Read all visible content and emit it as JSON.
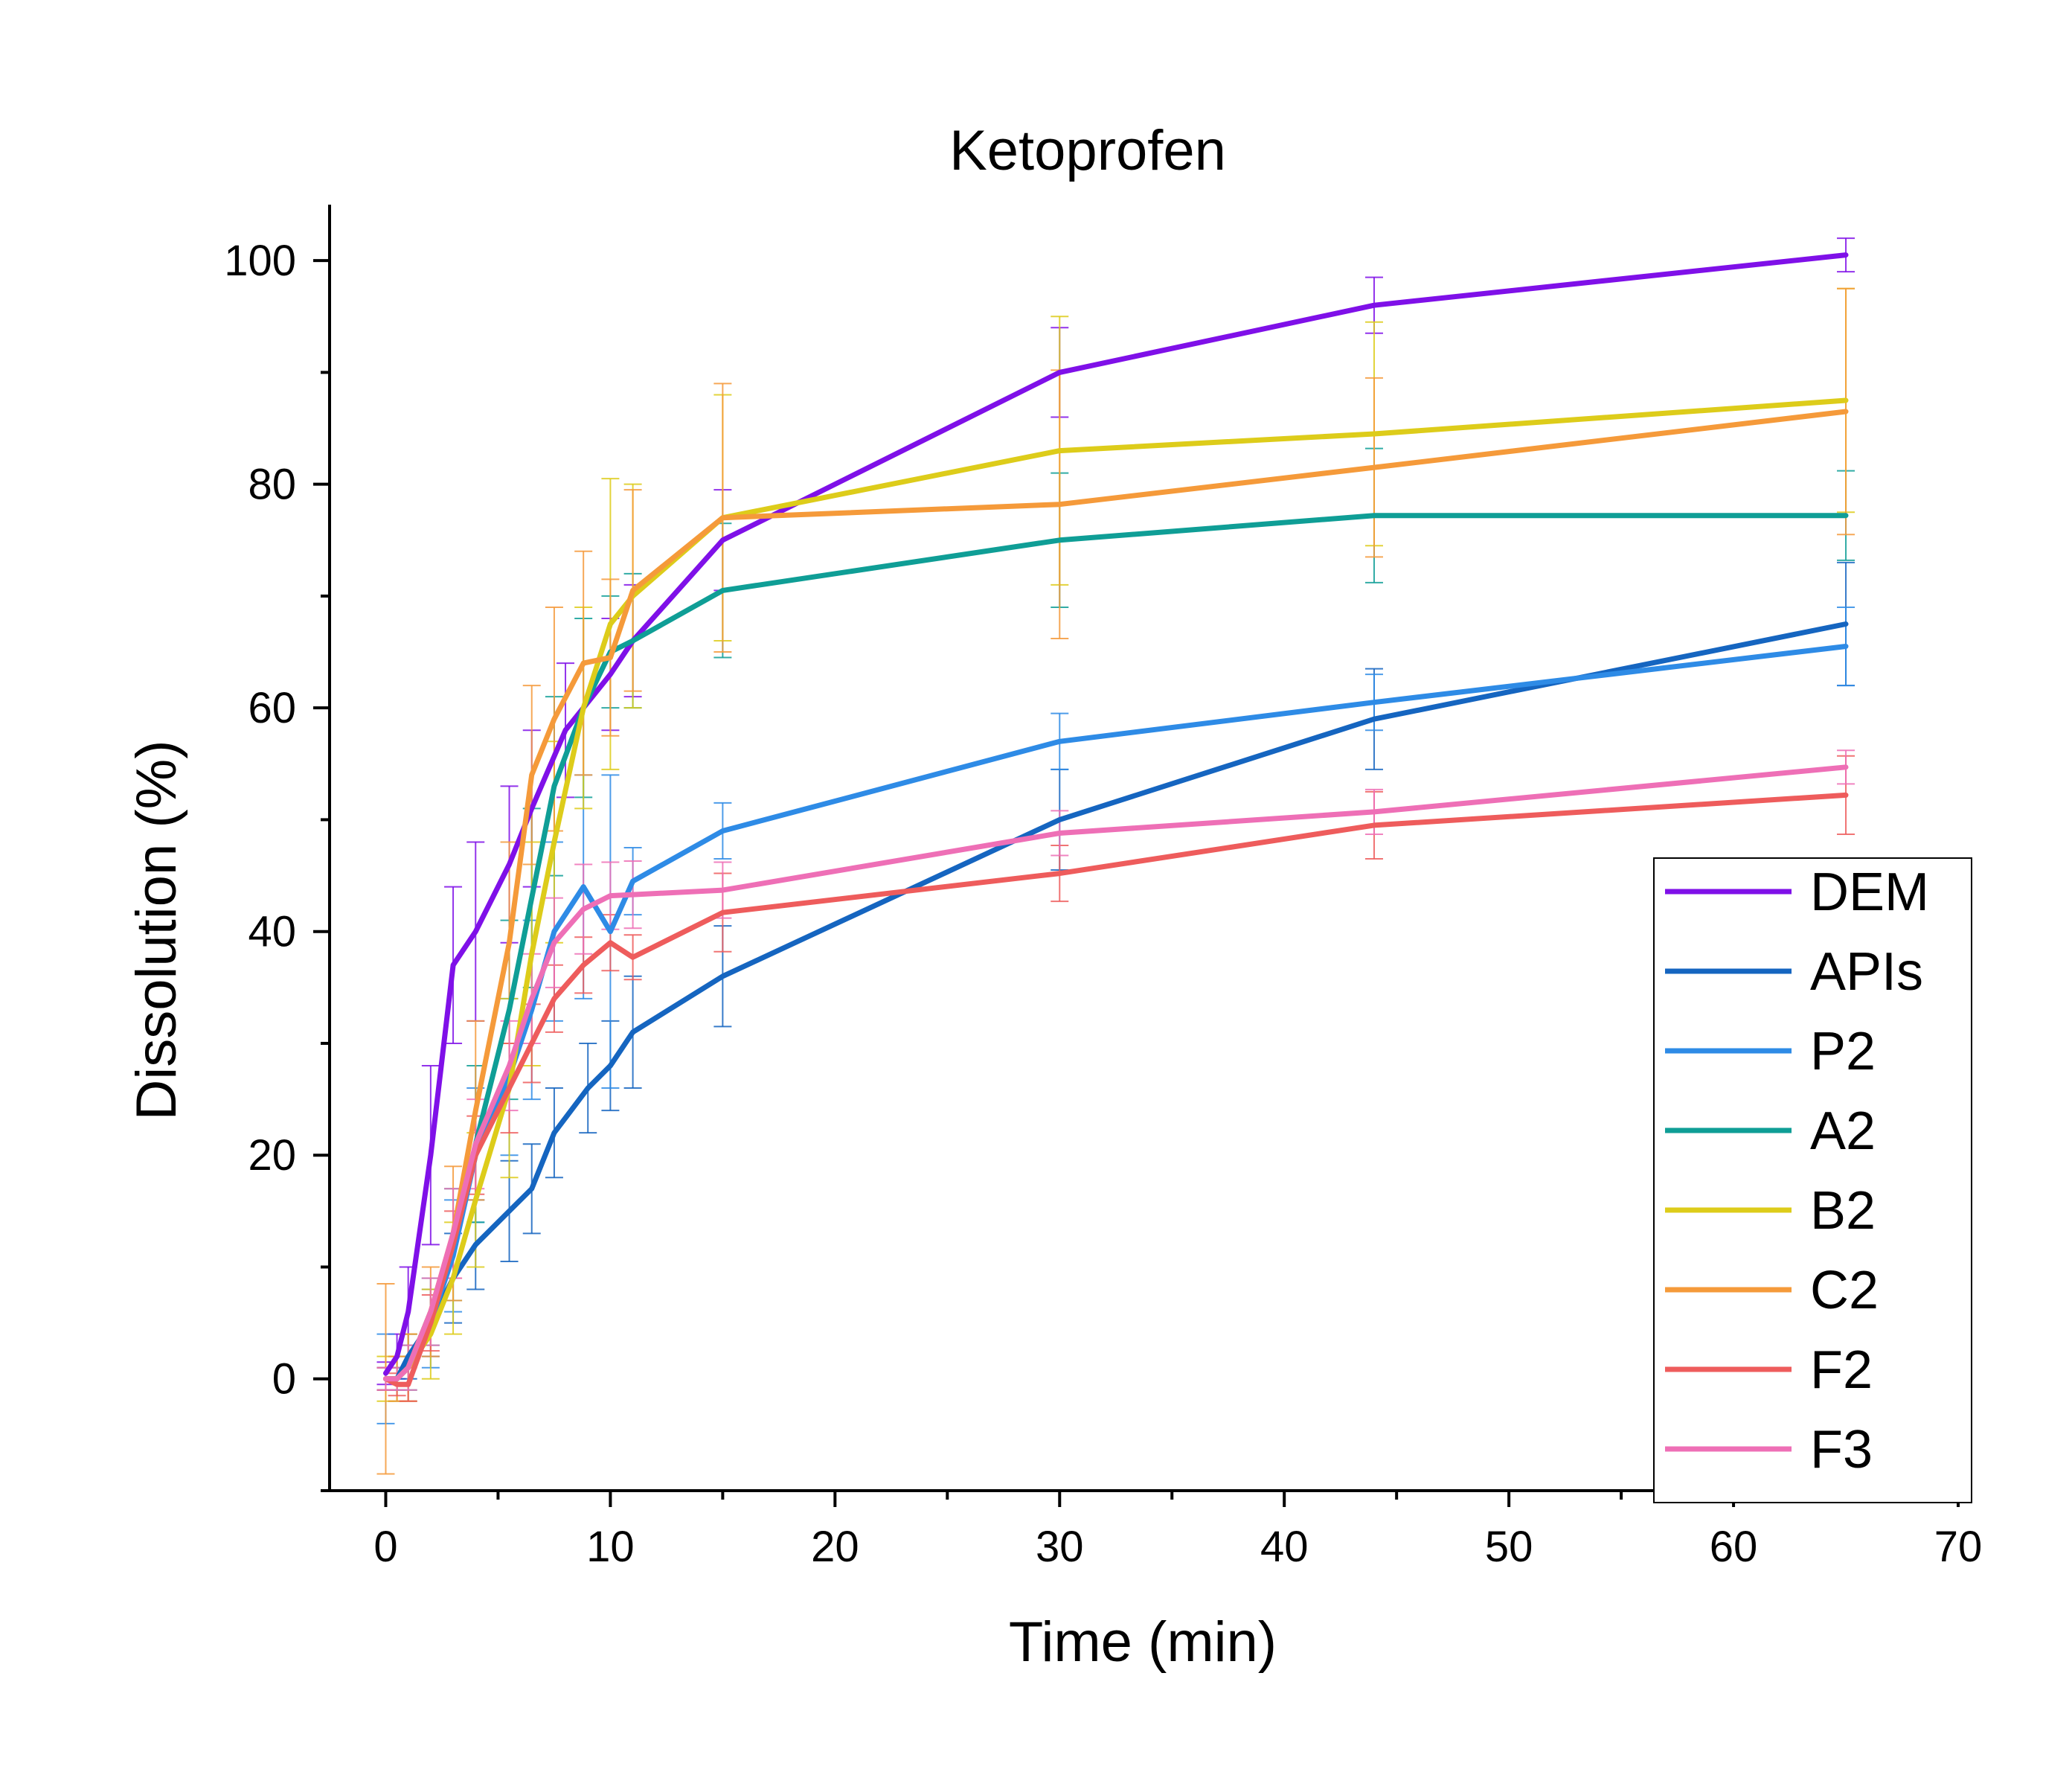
{
  "chart_data": {
    "type": "line",
    "title": "Ketoprofen",
    "xlabel": "Time (min)",
    "ylabel": "Dissolution (%)",
    "xlim": [
      -2.5,
      70
    ],
    "ylim": [
      -10,
      105
    ],
    "xticks": [
      0,
      10,
      20,
      30,
      40,
      50,
      60,
      70
    ],
    "yticks": [
      0,
      20,
      40,
      60,
      80,
      100
    ],
    "legend_position": "bottom-right",
    "grid": false,
    "series": [
      {
        "name": "DEM",
        "color": "#7F10E8",
        "x": [
          0,
          0.5,
          1,
          2,
          3,
          4,
          5.5,
          6.5,
          8,
          10,
          11,
          15,
          30,
          44,
          65
        ],
        "y": [
          0.5,
          2,
          6,
          20,
          37,
          40,
          46,
          51,
          58,
          63,
          66,
          75,
          90,
          96,
          100.5
        ],
        "err": [
          1,
          2,
          4,
          8,
          7,
          8,
          7,
          7,
          6,
          5,
          5,
          4.5,
          4,
          2.5,
          1.5
        ]
      },
      {
        "name": "APIs",
        "color": "#1565C0",
        "x": [
          0,
          0.5,
          1,
          2,
          3,
          4,
          5.5,
          6.5,
          7.5,
          9,
          10,
          11,
          15,
          30,
          44,
          65
        ],
        "y": [
          0,
          0,
          2,
          5,
          9,
          12,
          15,
          17,
          22,
          26,
          28,
          31,
          36,
          50,
          59,
          67.5
        ],
        "err": [
          1,
          1,
          2,
          3,
          4,
          4,
          4.5,
          4,
          4,
          4,
          4,
          5,
          4.5,
          4.5,
          4.5,
          5.5
        ]
      },
      {
        "name": "P2",
        "color": "#2E8BE6",
        "x": [
          0,
          0.5,
          1,
          2,
          3,
          4,
          5.5,
          6.5,
          7.5,
          8.8,
          10,
          11,
          15,
          30,
          44,
          65
        ],
        "y": [
          0,
          0,
          1,
          5,
          11,
          20,
          27,
          33,
          40,
          44,
          40,
          44.5,
          49,
          57,
          60.5,
          65.5
        ],
        "err": [
          4,
          2,
          3,
          4,
          5,
          6,
          7,
          8,
          8,
          10,
          14,
          3,
          2.5,
          2.5,
          2.5,
          3.5
        ]
      },
      {
        "name": "A2",
        "color": "#0F9E96",
        "x": [
          0,
          0.5,
          1,
          2,
          3,
          4,
          5.5,
          6.5,
          7.5,
          8.8,
          10,
          11,
          15,
          30,
          44,
          65
        ],
        "y": [
          0,
          0,
          1,
          6,
          12,
          21,
          33,
          43,
          53,
          60,
          65,
          66,
          70.5,
          75,
          77.2,
          77.2
        ],
        "err": [
          1,
          1,
          2,
          3,
          5,
          7,
          8,
          8,
          8,
          8,
          5,
          6,
          6,
          6,
          6,
          4
        ]
      },
      {
        "name": "B2",
        "color": "#DDCC1A",
        "x": [
          0,
          0.5,
          1,
          2,
          3,
          4,
          5.5,
          6.5,
          7.5,
          8.8,
          10,
          11,
          15,
          30,
          44,
          65
        ],
        "y": [
          0,
          0,
          1,
          4,
          9,
          16,
          26,
          38,
          48,
          60,
          67.5,
          70,
          77,
          83,
          84.5,
          87.5
        ],
        "err": [
          2,
          2,
          3,
          4,
          5,
          6,
          8,
          10,
          9,
          9,
          13,
          10,
          11,
          12,
          10,
          10
        ]
      },
      {
        "name": "C2",
        "color": "#F59A3A",
        "x": [
          0,
          0.5,
          1,
          2,
          3,
          4,
          5.5,
          6.5,
          7.5,
          8.8,
          10,
          11,
          15,
          30,
          44,
          65
        ],
        "y": [
          0,
          0,
          1,
          6,
          13,
          24,
          39,
          54,
          59,
          64,
          64.5,
          70.5,
          77,
          78.2,
          81.5,
          86.5
        ],
        "err": [
          8.5,
          2,
          3,
          4,
          6,
          8,
          9,
          8,
          10,
          10,
          7,
          9,
          12,
          12,
          8,
          11
        ]
      },
      {
        "name": "F2",
        "color": "#EE5C5C",
        "x": [
          0,
          0.5,
          1,
          2,
          3,
          4,
          5.5,
          6.5,
          7.5,
          8.8,
          10,
          11,
          15,
          30,
          44,
          65
        ],
        "y": [
          0,
          -0.5,
          -0.5,
          5,
          12,
          20,
          26,
          30,
          34,
          37,
          39,
          37.7,
          41.7,
          45.2,
          49.5,
          52.2
        ],
        "err": [
          1,
          1,
          1.5,
          2.5,
          3,
          3.5,
          4,
          3.5,
          3,
          2.5,
          2.5,
          2,
          3.5,
          2.5,
          3,
          3.5
        ]
      },
      {
        "name": "F3",
        "color": "#EE6FB6",
        "x": [
          0,
          0.5,
          1,
          2,
          3,
          4,
          5.5,
          6.5,
          7.5,
          8.8,
          10,
          11,
          15,
          30,
          44,
          65
        ],
        "y": [
          0,
          0,
          1,
          6,
          13,
          21,
          28,
          34,
          39,
          42,
          43.2,
          43.3,
          43.7,
          48.8,
          50.7,
          54.7
        ],
        "err": [
          1,
          1,
          2,
          3,
          4,
          4,
          4,
          4,
          4,
          4,
          3,
          3,
          2.5,
          2,
          2,
          1.5
        ]
      }
    ]
  }
}
